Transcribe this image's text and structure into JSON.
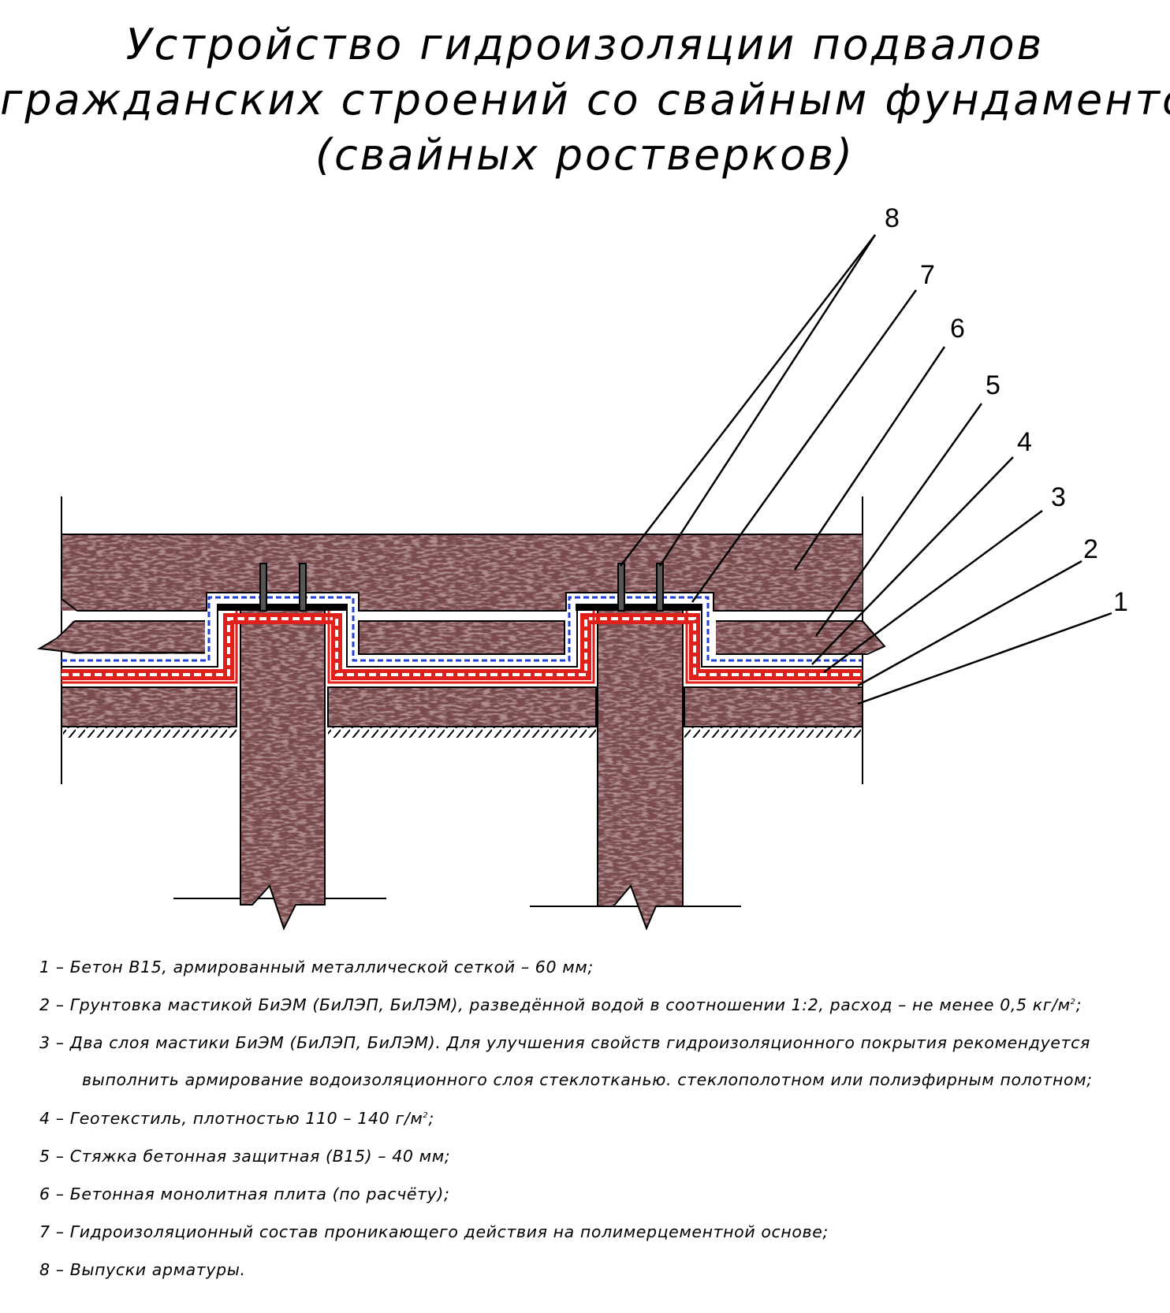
{
  "title": {
    "lines": [
      "Устройство гидроизоляции подвалов",
      "гражданских строений со свайным фундаментом",
      "(свайных ростверков)"
    ]
  },
  "callouts": [
    "8",
    "7",
    "6",
    "5",
    "4",
    "3",
    "2",
    "1"
  ],
  "colors": {
    "concrete": "#6e4446",
    "concrete_light": "#a98587",
    "primer": "#e0201a",
    "geotextile": "#1f3fd6",
    "penetrating": "#000000"
  },
  "legend": [
    {
      "text": "1 – Бетон В15, армированный металлической сеткой – 60 мм;"
    },
    {
      "text": "2 – Грунтовка мастикой БиЭМ (БиЛЭП, БиЛЭМ), разведённой водой в соотношении 1:2, расход – не менее 0,5 кг/м",
      "sup": "2",
      "tail": ";"
    },
    {
      "text": "3 – Два слоя мастики БиЭМ (БиЛЭП, БиЛЭМ).  Для улучшения свойств гидроизоляционного покрытия рекомендуется"
    },
    {
      "text": "выполнить армирование водоизоляционного слоя стеклотканью. стеклополотном или полиэфирным полотном;",
      "cont": true
    },
    {
      "text": "4 – Геотекстиль, плотностью 110 – 140 г/м",
      "sup": "2",
      "tail": ";"
    },
    {
      "text": "5 – Стяжка бетонная защитная (В15) – 40 мм;"
    },
    {
      "text": "6 – Бетонная монолитная плита (по расчёту);"
    },
    {
      "text": "7 – Гидроизоляционный состав проникающего действия на полимерцементной основе;"
    },
    {
      "text": "8 – Выпуски арматуры."
    }
  ]
}
